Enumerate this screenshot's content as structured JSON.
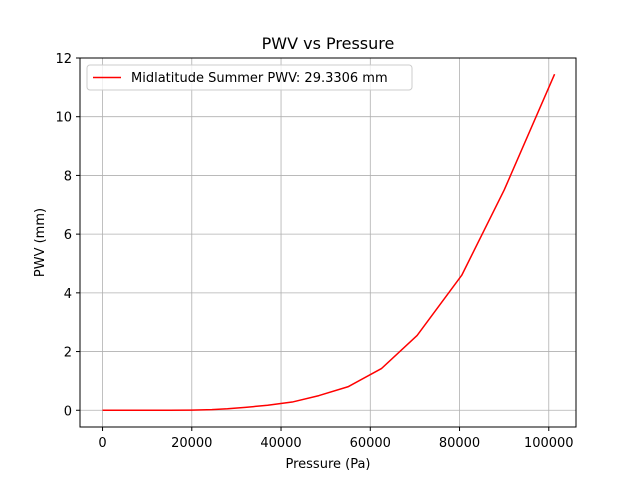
{
  "chart_data": {
    "type": "line",
    "title": "PWV vs Pressure",
    "xlabel": "Pressure (Pa)",
    "ylabel": "PWV (mm)",
    "xlim": [
      -5050,
      106100
    ],
    "ylim": [
      -0.57,
      12.0
    ],
    "grid": true,
    "legend_position": "top-left",
    "x_ticks": [
      0,
      20000,
      40000,
      60000,
      80000,
      100000
    ],
    "y_ticks": [
      0,
      2,
      4,
      6,
      8,
      10,
      12
    ],
    "series": [
      {
        "name": "Midlatitude Summer PWV: 29.3306 mm",
        "color": "#ff0000",
        "x": [
          0,
          5000,
          10000,
          15000,
          20000,
          24500,
          28000,
          32000,
          37000,
          42500,
          48500,
          55000,
          62500,
          70500,
          80500,
          90000,
          101300
        ],
        "y": [
          0,
          0,
          0,
          0,
          0.005,
          0.02,
          0.05,
          0.1,
          0.17,
          0.28,
          0.5,
          0.8,
          1.42,
          2.55,
          4.6,
          7.5,
          11.45
        ]
      }
    ]
  }
}
